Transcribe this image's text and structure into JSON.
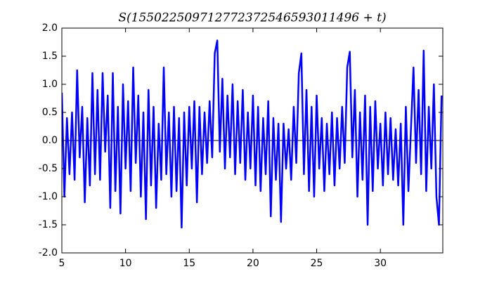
{
  "chart_data": {
    "type": "line",
    "title": "S(155022509712772372546593011496 + t)",
    "x": [
      5.0,
      5.2,
      5.4,
      5.6,
      5.8,
      6.0,
      6.2,
      6.4,
      6.6,
      6.8,
      7.0,
      7.2,
      7.4,
      7.6,
      7.8,
      8.0,
      8.2,
      8.4,
      8.6,
      8.8,
      9.0,
      9.2,
      9.4,
      9.6,
      9.8,
      10.0,
      10.2,
      10.4,
      10.6,
      10.8,
      11.0,
      11.2,
      11.4,
      11.6,
      11.8,
      12.0,
      12.2,
      12.4,
      12.6,
      12.8,
      13.0,
      13.2,
      13.4,
      13.6,
      13.8,
      14.0,
      14.2,
      14.4,
      14.6,
      14.8,
      15.0,
      15.2,
      15.4,
      15.6,
      15.8,
      16.0,
      16.2,
      16.4,
      16.6,
      16.8,
      17.0,
      17.2,
      17.4,
      17.6,
      17.8,
      18.0,
      18.2,
      18.4,
      18.6,
      18.8,
      19.0,
      19.2,
      19.4,
      19.6,
      19.8,
      20.0,
      20.2,
      20.4,
      20.6,
      20.8,
      21.0,
      21.2,
      21.4,
      21.6,
      21.8,
      22.0,
      22.2,
      22.4,
      22.6,
      22.8,
      23.0,
      23.2,
      23.4,
      23.6,
      23.8,
      24.0,
      24.2,
      24.4,
      24.6,
      24.8,
      25.0,
      25.2,
      25.4,
      25.6,
      25.8,
      26.0,
      26.2,
      26.4,
      26.6,
      26.8,
      27.0,
      27.2,
      27.4,
      27.6,
      27.8,
      28.0,
      28.2,
      28.4,
      28.6,
      28.8,
      29.0,
      29.2,
      29.4,
      29.6,
      29.8,
      30.0,
      30.2,
      30.4,
      30.6,
      30.8,
      31.0,
      31.2,
      31.4,
      31.6,
      31.8,
      32.0,
      32.2,
      32.4,
      32.6,
      32.8,
      33.0,
      33.2,
      33.4,
      33.6,
      33.8,
      34.0,
      34.2,
      34.4,
      34.6,
      34.8
    ],
    "values": [
      0.85,
      -1.0,
      0.4,
      -0.6,
      0.5,
      -0.7,
      1.25,
      -0.3,
      0.6,
      -1.1,
      0.4,
      -0.8,
      1.2,
      -0.6,
      0.9,
      -0.7,
      1.2,
      -0.2,
      0.8,
      -1.2,
      1.2,
      -0.9,
      0.6,
      -1.3,
      1.0,
      -0.5,
      0.7,
      -0.9,
      1.3,
      -0.4,
      0.8,
      -1.0,
      0.5,
      -1.4,
      0.9,
      -0.8,
      0.6,
      -1.2,
      0.3,
      -0.7,
      1.3,
      -0.6,
      0.5,
      -1.0,
      0.6,
      -0.9,
      0.4,
      -1.55,
      0.5,
      -0.8,
      0.6,
      -0.5,
      0.7,
      -1.1,
      0.6,
      -0.6,
      0.5,
      -0.4,
      0.7,
      -0.3,
      1.55,
      1.78,
      -0.2,
      1.1,
      -0.5,
      0.8,
      -0.3,
      1.0,
      -0.6,
      0.7,
      -0.4,
      0.9,
      -0.7,
      0.5,
      -0.5,
      0.8,
      -0.8,
      0.6,
      -0.9,
      0.4,
      -0.6,
      0.7,
      -1.35,
      0.4,
      -0.7,
      0.3,
      -1.45,
      0.3,
      -0.5,
      0.2,
      -0.7,
      0.6,
      -0.4,
      1.2,
      1.55,
      -0.6,
      0.9,
      -0.9,
      0.6,
      -1.0,
      0.8,
      -0.5,
      0.4,
      -0.9,
      0.3,
      -0.6,
      0.5,
      -0.8,
      0.4,
      -0.5,
      0.6,
      -0.4,
      1.3,
      1.58,
      -0.3,
      0.9,
      -1.0,
      0.5,
      -0.7,
      0.8,
      -1.5,
      0.6,
      -0.9,
      0.7,
      -0.5,
      0.3,
      -0.8,
      0.5,
      -0.6,
      0.4,
      -0.7,
      0.2,
      -0.8,
      0.3,
      -1.5,
      0.6,
      -0.9,
      0.2,
      1.3,
      -0.4,
      0.9,
      -0.6,
      1.6,
      -0.9,
      0.6,
      -0.5,
      1.0,
      -1.0,
      -1.5,
      0.8
    ],
    "color": "#0000ff",
    "baseline": 0,
    "xlim": [
      5,
      34.9
    ],
    "ylim": [
      -2,
      2
    ],
    "xticks": [
      5,
      10,
      15,
      20,
      25,
      30
    ],
    "yticks": [
      {
        "value": -2,
        "label": "-2.0"
      },
      -1.5,
      {
        "value": -1,
        "label": "-1.0"
      },
      -0.5,
      {
        "value": 0,
        "label": "0.0"
      },
      0.5,
      {
        "value": 1,
        "label": "1.0"
      },
      1.5,
      {
        "value": 2,
        "label": "2.0"
      }
    ]
  }
}
